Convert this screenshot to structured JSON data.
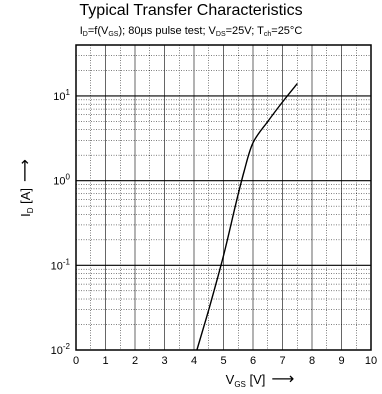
{
  "header": {
    "title": "Typical Transfer Characteristics",
    "subtitle_parts": {
      "id": "I",
      "id_sub": "D",
      "eq": "=f(V",
      "vgs_sub": "GS",
      "rest1": "); 80µs pulse test; V",
      "vds_sub": "DS",
      "rest2": "=25V; T",
      "tch_sub": "ch",
      "rest3": "=25°C"
    }
  },
  "chart_data": {
    "type": "line",
    "title": "Typical Transfer Characteristics",
    "subtitle": "I_D=f(V_GS); 80µs pulse test; V_DS=25V; T_ch=25°C",
    "xlabel": "V_GS [V]",
    "ylabel": "I_D [A]",
    "xlim": [
      0,
      10
    ],
    "ylim": [
      0.01,
      40
    ],
    "yscale": "log",
    "grid": true,
    "x_ticks": [
      "0",
      "1",
      "2",
      "3",
      "4",
      "5",
      "6",
      "7",
      "8",
      "9",
      "10"
    ],
    "y_ticks": [
      {
        "base": "10",
        "exp": "-2",
        "value": 0.01
      },
      {
        "base": "10",
        "exp": "-1",
        "value": 0.1
      },
      {
        "base": "10",
        "exp": "0",
        "value": 1
      },
      {
        "base": "10",
        "exp": "1",
        "value": 10
      }
    ],
    "series": [
      {
        "x": [
          4.1,
          4.5,
          5.0,
          5.4,
          5.7,
          6.0,
          6.5,
          7.0,
          7.5
        ],
        "y": [
          0.01,
          0.03,
          0.13,
          0.5,
          1.3,
          2.8,
          5.0,
          8.5,
          14
        ]
      }
    ],
    "axis_labels": {
      "x_main": "V",
      "x_sub": "GS",
      "x_unit": " [V]",
      "x_arrow": "⟶",
      "y_main": "I",
      "y_sub": "D",
      "y_unit": " [A]",
      "y_arrow": "⟶"
    }
  }
}
